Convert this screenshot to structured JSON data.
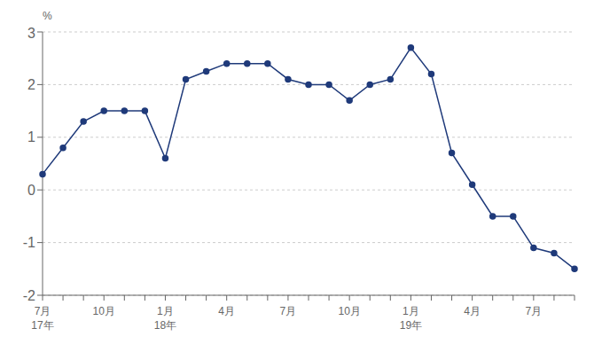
{
  "chart_data": {
    "type": "line",
    "y_label": "%",
    "categories": [
      "7月",
      null,
      null,
      "10月",
      null,
      null,
      "1月",
      null,
      null,
      "4月",
      null,
      null,
      "7月",
      null,
      null,
      "10月",
      null,
      null,
      "1月",
      null,
      null,
      "4月",
      null,
      null,
      "7月",
      null,
      null
    ],
    "annotations": [
      {
        "text": "17年",
        "x": 0
      },
      {
        "text": "18年",
        "x": 6
      },
      {
        "text": "19年",
        "x": 18
      }
    ],
    "values": [
      0.3,
      0.8,
      1.3,
      1.5,
      1.5,
      1.5,
      0.6,
      2.1,
      2.25,
      2.4,
      2.4,
      2.4,
      2.1,
      2.0,
      2.0,
      1.7,
      2.0,
      2.1,
      2.7,
      2.2,
      0.7,
      0.1,
      -0.5,
      -0.5,
      -1.1,
      -1.2,
      -1.5
    ],
    "color": "#1F3A7A",
    "marker": "circle",
    "ylim": [
      -2,
      3
    ],
    "yticks": [
      -2,
      -1,
      0,
      1,
      2,
      3
    ],
    "grid": true
  }
}
